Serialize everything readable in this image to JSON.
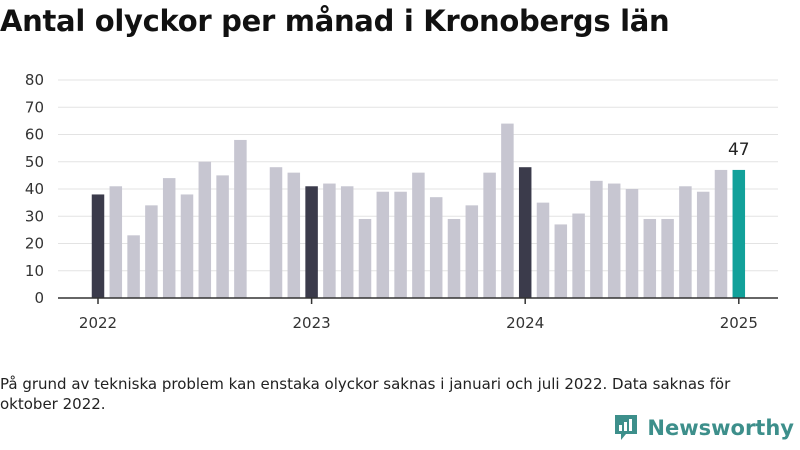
{
  "title": "Antal olyckor per månad i Kronobergs län",
  "note": "På grund av tekniska problem kan enstaka olyckor saknas i januari och juli 2022. Data saknas för oktober 2022.",
  "brand": {
    "name": "Newsworthy",
    "logo_icon": "newsworthy-chart-bubble-icon"
  },
  "colors": {
    "bar": "#c7c6d1",
    "bar_january": "#3b3b4b",
    "bar_latest": "#12a19a",
    "grid": "#e3e3e3",
    "axis": "#333333",
    "brand": "#3d8f8b"
  },
  "chart_data": {
    "type": "bar",
    "title": "Antal olyckor per månad i Kronobergs län",
    "xlabel": "",
    "ylabel": "",
    "ylim": [
      0,
      80
    ],
    "yticks": [
      0,
      10,
      20,
      30,
      40,
      50,
      60,
      70,
      80
    ],
    "xtick_labels": [
      "2022",
      "2023",
      "2024",
      "2025"
    ],
    "grid": true,
    "legend": "none",
    "highlight_label": "47",
    "x": [
      "2022-01",
      "2022-02",
      "2022-03",
      "2022-04",
      "2022-05",
      "2022-06",
      "2022-07",
      "2022-08",
      "2022-09",
      "2022-10",
      "2022-11",
      "2022-12",
      "2023-01",
      "2023-02",
      "2023-03",
      "2023-04",
      "2023-05",
      "2023-06",
      "2023-07",
      "2023-08",
      "2023-09",
      "2023-10",
      "2023-11",
      "2023-12",
      "2024-01",
      "2024-02",
      "2024-03",
      "2024-04",
      "2024-05",
      "2024-06",
      "2024-07",
      "2024-08",
      "2024-09",
      "2024-10",
      "2024-11",
      "2024-12",
      "2025-01"
    ],
    "values": [
      38,
      41,
      23,
      34,
      44,
      38,
      50,
      45,
      58,
      null,
      48,
      46,
      41,
      42,
      41,
      29,
      39,
      39,
      46,
      37,
      29,
      34,
      46,
      64,
      48,
      35,
      27,
      31,
      43,
      42,
      40,
      29,
      29,
      41,
      39,
      47,
      47
    ]
  }
}
